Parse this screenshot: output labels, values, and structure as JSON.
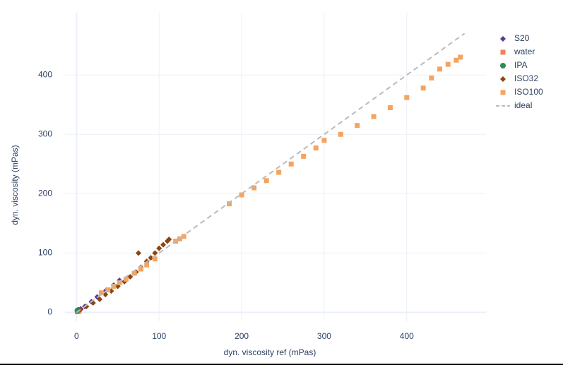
{
  "chart_data": {
    "type": "scatter",
    "xlabel": "dyn. viscosity ref (mPas)",
    "ylabel": "dyn. viscosity (mPas)",
    "xlim": [
      -14,
      496
    ],
    "ylim": [
      -15,
      505
    ],
    "xticks": [
      0,
      100,
      200,
      300,
      400
    ],
    "yticks": [
      0,
      100,
      200,
      300,
      400
    ],
    "grid": true,
    "legend": "right",
    "series": [
      {
        "name": "S20",
        "color": "#5b3a9c",
        "symbol": "diamond",
        "x": [
          5,
          10,
          18,
          25,
          35,
          45,
          52
        ],
        "y": [
          6,
          10,
          18,
          26,
          36,
          46,
          54
        ]
      },
      {
        "name": "water",
        "color": "#f0825e",
        "symbol": "square",
        "x": [
          1,
          2,
          3
        ],
        "y": [
          1,
          2,
          2
        ]
      },
      {
        "name": "IPA",
        "color": "#2e8b57",
        "symbol": "circle",
        "x": [
          1,
          2
        ],
        "y": [
          3,
          4
        ]
      },
      {
        "name": "ISO32",
        "color": "#8b4513",
        "symbol": "diamond",
        "x": [
          5,
          12,
          20,
          28,
          35,
          42,
          50,
          58,
          65,
          72,
          78,
          85,
          90,
          95,
          100,
          105,
          110,
          112,
          75
        ],
        "y": [
          5,
          10,
          16,
          22,
          30,
          36,
          44,
          52,
          60,
          68,
          76,
          86,
          92,
          100,
          108,
          114,
          120,
          123,
          100
        ]
      },
      {
        "name": "ISO100",
        "color": "#f4a460",
        "symbol": "square",
        "x": [
          30,
          38,
          45,
          52,
          60,
          70,
          78,
          85,
          95,
          120,
          125,
          130,
          185,
          200,
          215,
          230,
          245,
          260,
          275,
          290,
          300,
          320,
          340,
          360,
          380,
          400,
          420,
          430,
          440,
          450,
          460,
          465
        ],
        "y": [
          33,
          38,
          44,
          50,
          56,
          66,
          73,
          80,
          90,
          120,
          124,
          128,
          183,
          198,
          210,
          222,
          236,
          250,
          263,
          277,
          290,
          300,
          315,
          330,
          345,
          362,
          378,
          395,
          410,
          418,
          425,
          430
        ]
      },
      {
        "name": "ideal",
        "color": "#bbbbbb",
        "mode": "lines",
        "dash": true,
        "x": [
          0,
          470
        ],
        "y": [
          0,
          470
        ]
      }
    ]
  }
}
